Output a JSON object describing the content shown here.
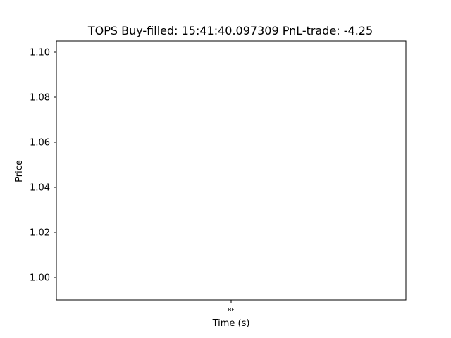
{
  "chart_data": {
    "type": "line",
    "title": "TOPS  Buy-filled:  15:41:40.097309  PnL-trade:  -4.25",
    "xlabel": "Time (s)",
    "ylabel": "Price",
    "ylim": [
      0.99,
      1.105
    ],
    "yticks": [
      1.0,
      1.02,
      1.04,
      1.06,
      1.08,
      1.1
    ],
    "ytick_labels": [
      "1.00",
      "1.02",
      "1.04",
      "1.06",
      "1.08",
      "1.10"
    ],
    "xticks": [
      {
        "value": 0.5,
        "label": "BF"
      }
    ],
    "xlim": [
      0,
      1
    ],
    "grid": false,
    "series": []
  },
  "colors": {
    "axes": "#000000",
    "background": "#ffffff"
  }
}
